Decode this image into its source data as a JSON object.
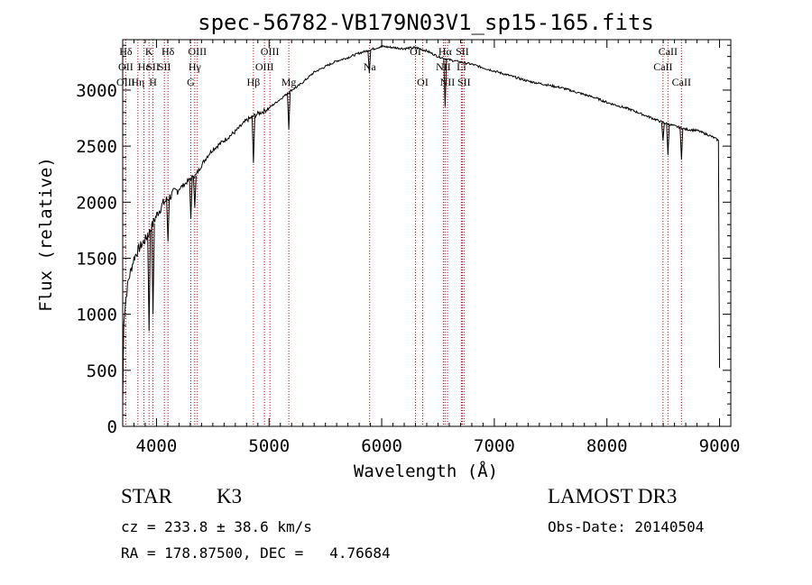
{
  "chart_data": {
    "type": "line",
    "title": "spec-56782-VB179N03V1_sp15-165.fits",
    "xlabel": "Wavelength (Å)",
    "ylabel": "Flux (relative)",
    "xlim": [
      3700,
      9100
    ],
    "ylim": [
      0,
      3450
    ],
    "x_ticks": [
      4000,
      5000,
      6000,
      7000,
      8000,
      9000
    ],
    "y_ticks": [
      0,
      500,
      1000,
      1500,
      2000,
      2500,
      3000
    ],
    "grid": false,
    "series": [
      {
        "name": "flux",
        "x": [
          3700,
          3710,
          3730,
          3750,
          3780,
          3800,
          3830,
          3860,
          3890,
          3920,
          3950,
          3980,
          4020,
          4060,
          4100,
          4150,
          4200,
          4250,
          4300,
          4350,
          4400,
          4450,
          4500,
          4550,
          4600,
          4650,
          4700,
          4750,
          4800,
          4850,
          4900,
          4950,
          5000,
          5050,
          5100,
          5150,
          5200,
          5250,
          5300,
          5400,
          5500,
          5600,
          5700,
          5800,
          5900,
          6000,
          6100,
          6200,
          6300,
          6400,
          6500,
          6600,
          6700,
          6800,
          6900,
          7000,
          7100,
          7200,
          7300,
          7400,
          7500,
          7600,
          7700,
          7800,
          7900,
          8000,
          8100,
          8200,
          8300,
          8400,
          8500,
          8600,
          8700,
          8800,
          8900,
          8960,
          8990,
          9000
        ],
        "y": [
          200,
          950,
          1150,
          1300,
          1420,
          1500,
          1560,
          1610,
          1650,
          1700,
          1760,
          1840,
          1920,
          1990,
          2030,
          2080,
          2120,
          2160,
          2210,
          2240,
          2330,
          2410,
          2470,
          2510,
          2550,
          2590,
          2630,
          2680,
          2730,
          2760,
          2790,
          2810,
          2840,
          2880,
          2920,
          2960,
          3000,
          3030,
          3070,
          3160,
          3210,
          3260,
          3290,
          3330,
          3360,
          3390,
          3380,
          3370,
          3380,
          3350,
          3300,
          3270,
          3250,
          3230,
          3200,
          3170,
          3140,
          3110,
          3080,
          3060,
          3040,
          3020,
          2990,
          2960,
          2930,
          2890,
          2860,
          2830,
          2790,
          2750,
          2710,
          2680,
          2650,
          2640,
          2600,
          2570,
          2550,
          520
        ]
      }
    ],
    "absorption_dips": [
      {
        "x": 3934,
        "y": 850
      },
      {
        "x": 3969,
        "y": 1000
      },
      {
        "x": 4102,
        "y": 1650
      },
      {
        "x": 4305,
        "y": 1850
      },
      {
        "x": 4340,
        "y": 1950
      },
      {
        "x": 4861,
        "y": 2350
      },
      {
        "x": 5175,
        "y": 2650
      },
      {
        "x": 5890,
        "y": 3150
      },
      {
        "x": 6563,
        "y": 2850
      },
      {
        "x": 8498,
        "y": 2550
      },
      {
        "x": 8542,
        "y": 2420
      },
      {
        "x": 8662,
        "y": 2380
      }
    ],
    "line_markers": [
      {
        "label": "Hδ",
        "wavelength": 3727,
        "row": 1
      },
      {
        "label": "OII",
        "wavelength": 3727,
        "row": 2
      },
      {
        "label": "OIII",
        "wavelength": 3727,
        "row": 3
      },
      {
        "label": "Hε",
        "wavelength": 3889,
        "row": 2
      },
      {
        "label": "Hη",
        "wavelength": 3835,
        "row": 3
      },
      {
        "label": "K",
        "wavelength": 3934,
        "row": 1
      },
      {
        "label": "SII",
        "wavelength": 3969,
        "row": 2
      },
      {
        "label": "H",
        "wavelength": 3969,
        "row": 3
      },
      {
        "label": "Hδ",
        "wavelength": 4102,
        "row": 1
      },
      {
        "label": "SII",
        "wavelength": 4070,
        "row": 2
      },
      {
        "label": "OIII",
        "wavelength": 4363,
        "row": 1
      },
      {
        "label": "Hγ",
        "wavelength": 4340,
        "row": 2
      },
      {
        "label": "G",
        "wavelength": 4305,
        "row": 3
      },
      {
        "label": "Hβ",
        "wavelength": 4861,
        "row": 3
      },
      {
        "label": "OIII",
        "wavelength": 5007,
        "row": 1
      },
      {
        "label": "OIII",
        "wavelength": 4959,
        "row": 2
      },
      {
        "label": "Mg",
        "wavelength": 5175,
        "row": 3
      },
      {
        "label": "Na",
        "wavelength": 5893,
        "row": 2
      },
      {
        "label": "OI",
        "wavelength": 6300,
        "row": 1
      },
      {
        "label": "OI",
        "wavelength": 6364,
        "row": 3
      },
      {
        "label": "Hα",
        "wavelength": 6563,
        "row": 1
      },
      {
        "label": "SII",
        "wavelength": 6716,
        "row": 1
      },
      {
        "label": "NII",
        "wavelength": 6548,
        "row": 2
      },
      {
        "label": "Li",
        "wavelength": 6708,
        "row": 2
      },
      {
        "label": "NII",
        "wavelength": 6584,
        "row": 3
      },
      {
        "label": "SII",
        "wavelength": 6731,
        "row": 3
      },
      {
        "label": "CaII",
        "wavelength": 8542,
        "row": 1
      },
      {
        "label": "CaII",
        "wavelength": 8498,
        "row": 2
      },
      {
        "label": "CaII",
        "wavelength": 8662,
        "row": 3
      }
    ]
  },
  "info": {
    "class_label": "STAR",
    "subclass": "K3",
    "survey": "LAMOST DR3",
    "cz": "cz = 233.8 ± 38.6 km/s",
    "obs_date": "Obs-Date: 20140504",
    "coords": "RA = 178.87500, DEC =   4.76684"
  },
  "colors": {
    "marker_line": "#cc0000",
    "spectrum": "#000000",
    "axes": "#000000"
  }
}
